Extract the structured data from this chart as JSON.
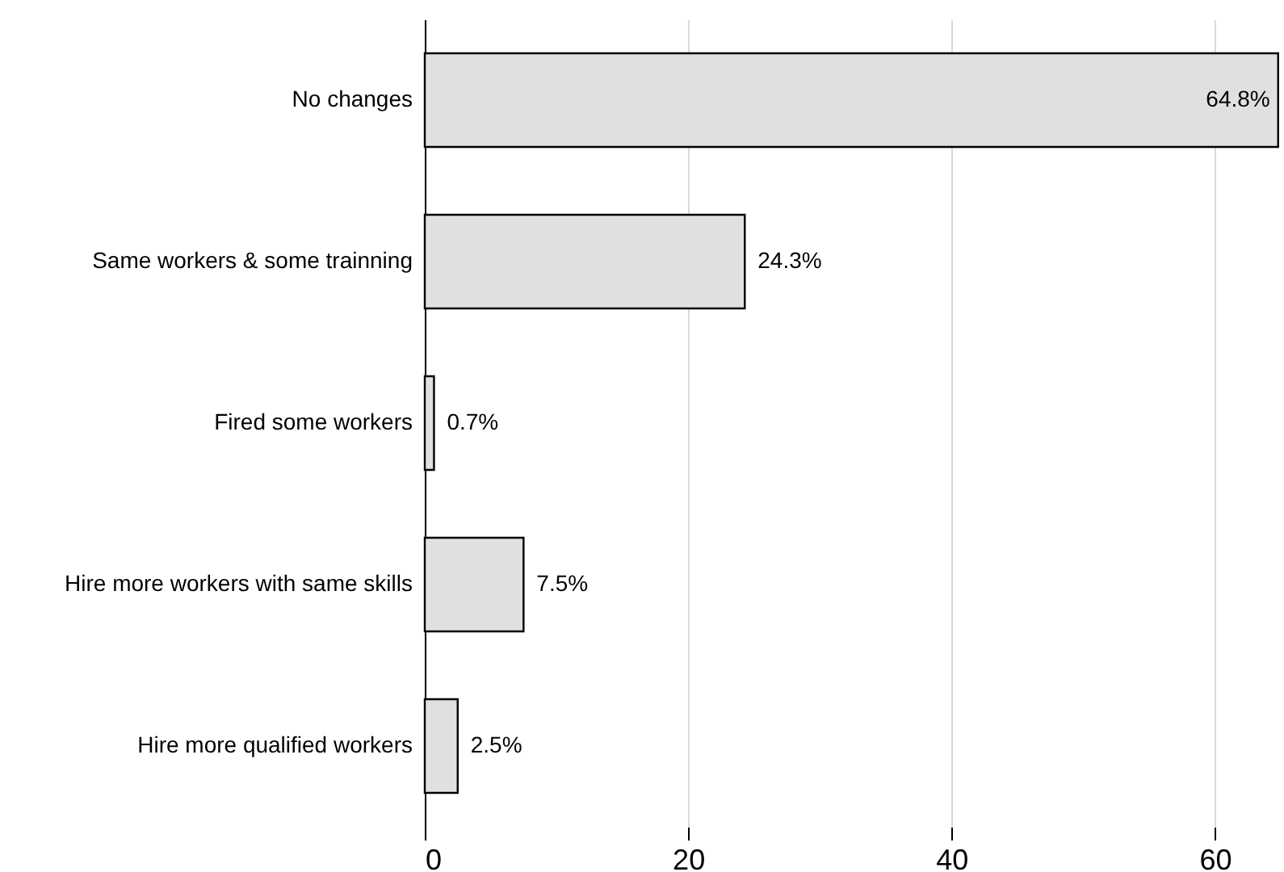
{
  "chart_data": {
    "type": "bar",
    "orientation": "horizontal",
    "categories": [
      "No changes",
      "Same workers & some trainning",
      "Fired some workers",
      "Hire more workers with same skills",
      "Hire more qualified workers"
    ],
    "values": [
      64.8,
      24.3,
      0.7,
      7.5,
      2.5
    ],
    "value_labels": [
      "64.8%",
      "24.3%",
      "0.7%",
      "7.5%",
      "2.5%"
    ],
    "color": "#e0e0e0",
    "xlim": [
      0,
      65
    ],
    "xticks": [
      0,
      20,
      40,
      60
    ],
    "grid": "x"
  }
}
